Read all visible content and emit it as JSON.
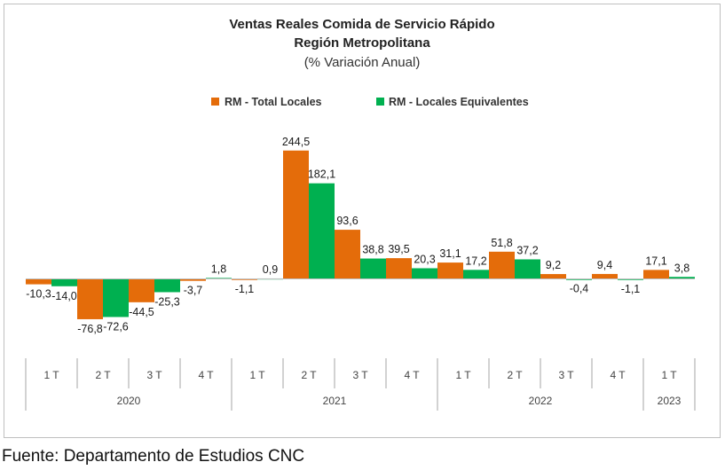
{
  "chart_data": {
    "type": "bar",
    "title": "Ventas Reales Comida de Servicio Rápido",
    "subtitle": "Región Metropolitana",
    "subtitle2": "(% Variación Anual)",
    "categories": [
      "1 T",
      "2 T",
      "3 T",
      "4 T",
      "1 T",
      "2 T",
      "3 T",
      "4 T",
      "1 T",
      "2 T",
      "3 T",
      "4 T",
      "1 T"
    ],
    "year_groups": [
      {
        "label": "2020",
        "count": 4
      },
      {
        "label": "2021",
        "count": 4
      },
      {
        "label": "2022",
        "count": 4
      },
      {
        "label": "2023",
        "count": 1
      }
    ],
    "series": [
      {
        "name": "RM - Total Locales",
        "color": "#E46C0A",
        "values": [
          -10.3,
          -76.8,
          -44.5,
          -3.7,
          -1.1,
          244.5,
          93.6,
          39.5,
          31.1,
          51.8,
          9.2,
          9.4,
          17.1
        ],
        "labels": [
          "-10,3",
          "-76,8",
          "-44,5",
          "-3,7",
          "-1,1",
          "244,5",
          "93,6",
          "39,5",
          "31,1",
          "51,8",
          "9,2",
          "9,4",
          "17,1"
        ]
      },
      {
        "name": "RM - Locales Equivalentes",
        "color": "#00B050",
        "values": [
          -14.0,
          -72.6,
          -25.3,
          1.8,
          0.9,
          182.1,
          38.8,
          20.3,
          17.2,
          37.2,
          -0.4,
          -1.1,
          3.8
        ],
        "labels": [
          "-14,0",
          "-72,6",
          "-25,3",
          "1,8",
          "0,9",
          "182,1",
          "38,8",
          "20,3",
          "17,2",
          "37,2",
          "-0,4",
          "-1,1",
          "3,8"
        ]
      }
    ],
    "ylim": [
      -85,
      255
    ],
    "grid": false,
    "legend_position": "top"
  },
  "source": "Fuente: Departamento de Estudios CNC"
}
